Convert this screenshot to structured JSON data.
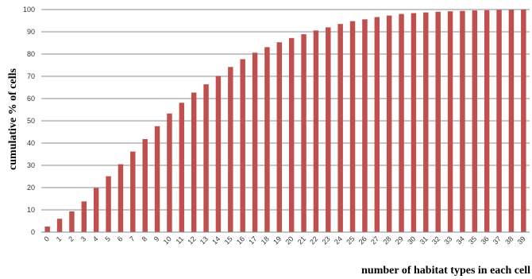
{
  "chart_data": {
    "type": "bar",
    "title": "",
    "xlabel": "number of habitat types in each cell",
    "ylabel": "cumulative % of cells",
    "ylim": [
      0,
      100
    ],
    "yticks": [
      0,
      10,
      20,
      30,
      40,
      50,
      60,
      70,
      80,
      90,
      100
    ],
    "grid": "horizontal",
    "legend": "none",
    "bar_color": "#C0504D",
    "categories": [
      "0",
      "1",
      "2",
      "3",
      "4",
      "5",
      "6",
      "7",
      "8",
      "9",
      "10",
      "11",
      "12",
      "13",
      "14",
      "15",
      "16",
      "17",
      "18",
      "19",
      "20",
      "21",
      "22",
      "23",
      "24",
      "25",
      "26",
      "27",
      "28",
      "29",
      "30",
      "31",
      "32",
      "33",
      "34",
      "35",
      "36",
      "37",
      "38",
      "39"
    ],
    "values": [
      2.5,
      6,
      9.3,
      13.8,
      19.8,
      25.1,
      30.5,
      36.2,
      41.8,
      47.6,
      53.3,
      58.1,
      62.7,
      66.4,
      70.2,
      74.2,
      77.7,
      80.6,
      83.1,
      85.3,
      87.2,
      88.9,
      90.6,
      92,
      93.5,
      94.8,
      95.6,
      96.6,
      97.3,
      98,
      98.4,
      98.7,
      99,
      99.2,
      99.4,
      99.6,
      99.7,
      99.8,
      99.9,
      100
    ]
  }
}
